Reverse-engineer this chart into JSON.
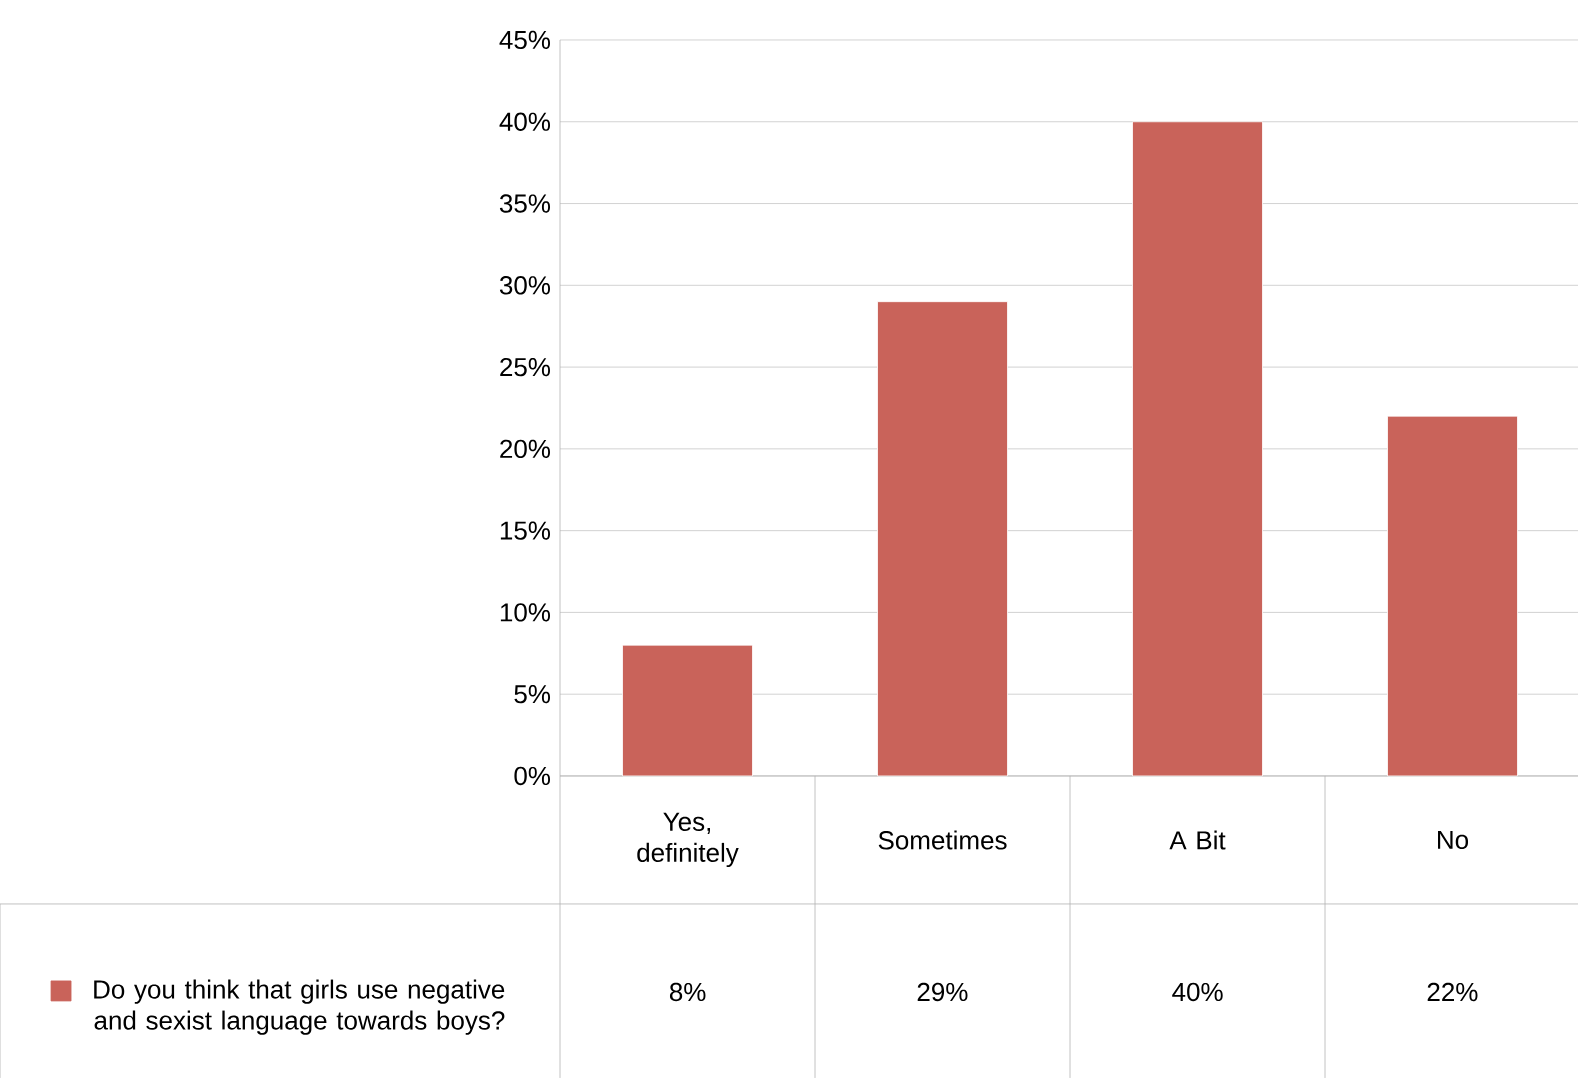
{
  "chart_data": {
    "type": "bar",
    "categories": [
      "Yes, definitely",
      "Sometimes",
      "A Bit",
      "No"
    ],
    "series": [
      {
        "name": "Do you think that girls use negative and sexist language towards boys?",
        "color": "#c9635a",
        "values": [
          8,
          29,
          40,
          22
        ],
        "value_labels": [
          "8%",
          "29%",
          "40%",
          "22%"
        ]
      }
    ],
    "ylim": [
      0,
      45
    ],
    "yticks": [
      {
        "value": 0,
        "label": "0%"
      },
      {
        "value": 5,
        "label": "5%"
      },
      {
        "value": 10,
        "label": "10%"
      },
      {
        "value": 15,
        "label": "15%"
      },
      {
        "value": 20,
        "label": "20%"
      },
      {
        "value": 25,
        "label": "25%"
      },
      {
        "value": 30,
        "label": "30%"
      },
      {
        "value": 35,
        "label": "35%"
      },
      {
        "value": 40,
        "label": "40%"
      },
      {
        "value": 45,
        "label": "45%"
      }
    ],
    "grid": "y",
    "legend": "bottom left"
  }
}
